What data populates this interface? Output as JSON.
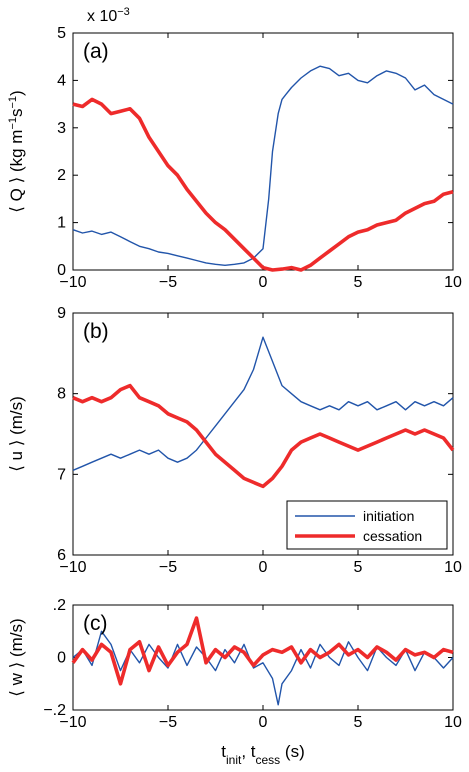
{
  "figure": {
    "xlabel_main": "t",
    "xlabel_sub1": "init",
    "xlabel_sep": ", t",
    "xlabel_sub2": "cess",
    "xlabel_unit": " (s)"
  },
  "colors": {
    "initiation": "#2255aa",
    "cessation": "#ee2b2b"
  },
  "chart_data": [
    {
      "type": "line",
      "panel_label": "(a)",
      "multiplier_base": "x 10",
      "multiplier_exp": "−3",
      "ylabel_parts": [
        "⟨ Q ⟩ (kg m",
        "−1",
        "s",
        "−1",
        ")"
      ],
      "xlim": [
        -10,
        10
      ],
      "ylim": [
        0,
        5
      ],
      "xticks": [
        "−10",
        "−5",
        "0",
        "5",
        "10"
      ],
      "yticks": [
        "0",
        "1",
        "2",
        "3",
        "4",
        "5"
      ],
      "series": [
        {
          "name": "initiation",
          "x": [
            -10,
            -9.5,
            -9,
            -8.5,
            -8,
            -7.5,
            -7,
            -6.5,
            -6,
            -5.5,
            -5,
            -4.5,
            -4,
            -3.5,
            -3,
            -2.5,
            -2,
            -1.5,
            -1,
            -0.5,
            0,
            0.3,
            0.5,
            0.8,
            1,
            1.2,
            1.5,
            2,
            2.5,
            3,
            3.5,
            4,
            4.5,
            5,
            5.5,
            6,
            6.5,
            7,
            7.5,
            8,
            8.5,
            9,
            9.5,
            10
          ],
          "y": [
            0.85,
            0.78,
            0.82,
            0.75,
            0.8,
            0.7,
            0.6,
            0.5,
            0.45,
            0.38,
            0.35,
            0.3,
            0.25,
            0.2,
            0.15,
            0.12,
            0.1,
            0.12,
            0.15,
            0.25,
            0.45,
            1.5,
            2.5,
            3.3,
            3.6,
            3.7,
            3.85,
            4.05,
            4.2,
            4.3,
            4.25,
            4.1,
            4.15,
            4.0,
            3.95,
            4.1,
            4.2,
            4.15,
            4.05,
            3.8,
            3.9,
            3.7,
            3.6,
            3.5
          ]
        },
        {
          "name": "cessation",
          "x": [
            -10,
            -9.5,
            -9,
            -8.5,
            -8,
            -7.5,
            -7,
            -6.5,
            -6,
            -5.5,
            -5,
            -4.5,
            -4,
            -3.5,
            -3,
            -2.5,
            -2,
            -1.5,
            -1,
            -0.5,
            0,
            0.5,
            1,
            1.5,
            2,
            2.5,
            3,
            3.5,
            4,
            4.5,
            5,
            5.5,
            6,
            6.5,
            7,
            7.5,
            8,
            8.5,
            9,
            9.5,
            10
          ],
          "y": [
            3.5,
            3.45,
            3.6,
            3.5,
            3.3,
            3.35,
            3.4,
            3.2,
            2.8,
            2.5,
            2.2,
            2.0,
            1.7,
            1.45,
            1.2,
            1.0,
            0.85,
            0.65,
            0.45,
            0.25,
            0.05,
            0.0,
            0.02,
            0.05,
            0.0,
            0.1,
            0.25,
            0.4,
            0.55,
            0.7,
            0.8,
            0.85,
            0.95,
            1.0,
            1.05,
            1.2,
            1.3,
            1.4,
            1.45,
            1.6,
            1.65
          ]
        }
      ]
    },
    {
      "type": "line",
      "panel_label": "(b)",
      "ylabel": "⟨ u ⟩ (m/s)",
      "xlim": [
        -10,
        10
      ],
      "ylim": [
        6,
        9
      ],
      "xticks": [
        "−10",
        "−5",
        "0",
        "5",
        "10"
      ],
      "yticks": [
        "6",
        "7",
        "8",
        "9"
      ],
      "legend": {
        "position": "bottom-right",
        "entries": [
          "initiation",
          "cessation"
        ]
      },
      "series": [
        {
          "name": "initiation",
          "x": [
            -10,
            -9.5,
            -9,
            -8.5,
            -8,
            -7.5,
            -7,
            -6.5,
            -6,
            -5.5,
            -5,
            -4.5,
            -4,
            -3.5,
            -3,
            -2.5,
            -2,
            -1.5,
            -1,
            -0.5,
            0,
            0.5,
            1,
            1.5,
            2,
            2.5,
            3,
            3.5,
            4,
            4.5,
            5,
            5.5,
            6,
            6.5,
            7,
            7.5,
            8,
            8.5,
            9,
            9.5,
            10
          ],
          "y": [
            7.05,
            7.1,
            7.15,
            7.2,
            7.25,
            7.2,
            7.25,
            7.3,
            7.25,
            7.3,
            7.2,
            7.15,
            7.2,
            7.3,
            7.45,
            7.6,
            7.75,
            7.9,
            8.05,
            8.3,
            8.7,
            8.4,
            8.1,
            8.0,
            7.9,
            7.85,
            7.8,
            7.85,
            7.8,
            7.9,
            7.85,
            7.9,
            7.8,
            7.85,
            7.9,
            7.8,
            7.9,
            7.85,
            7.9,
            7.85,
            7.95
          ]
        },
        {
          "name": "cessation",
          "x": [
            -10,
            -9.5,
            -9,
            -8.5,
            -8,
            -7.5,
            -7,
            -6.5,
            -6,
            -5.5,
            -5,
            -4.5,
            -4,
            -3.5,
            -3,
            -2.5,
            -2,
            -1.5,
            -1,
            -0.5,
            0,
            0.5,
            1,
            1.5,
            2,
            2.5,
            3,
            3.5,
            4,
            4.5,
            5,
            5.5,
            6,
            6.5,
            7,
            7.5,
            8,
            8.5,
            9,
            9.5,
            10
          ],
          "y": [
            7.95,
            7.9,
            7.95,
            7.9,
            7.95,
            8.05,
            8.1,
            7.95,
            7.9,
            7.85,
            7.75,
            7.7,
            7.65,
            7.55,
            7.4,
            7.25,
            7.15,
            7.05,
            6.95,
            6.9,
            6.85,
            6.95,
            7.1,
            7.3,
            7.4,
            7.45,
            7.5,
            7.45,
            7.4,
            7.35,
            7.3,
            7.35,
            7.4,
            7.45,
            7.5,
            7.55,
            7.5,
            7.55,
            7.5,
            7.45,
            7.3
          ]
        }
      ]
    },
    {
      "type": "line",
      "panel_label": "(c)",
      "ylabel": "⟨ w ⟩ (m/s)",
      "xlim": [
        -10,
        10
      ],
      "ylim": [
        -0.2,
        0.2
      ],
      "xticks": [
        "−10",
        "−5",
        "0",
        "5",
        "10"
      ],
      "yticks": [
        "−.2",
        "0",
        ".2"
      ],
      "series": [
        {
          "name": "initiation",
          "x": [
            -10,
            -9.5,
            -9,
            -8.5,
            -8,
            -7.5,
            -7,
            -6.5,
            -6,
            -5.5,
            -5,
            -4.5,
            -4,
            -3.5,
            -3,
            -2.5,
            -2,
            -1.5,
            -1,
            -0.5,
            0,
            0.5,
            0.8,
            1,
            1.5,
            2,
            2.5,
            3,
            3.5,
            4,
            4.5,
            5,
            5.5,
            6,
            6.5,
            7,
            7.5,
            8,
            8.5,
            9,
            9.5,
            10
          ],
          "y": [
            0.0,
            0.03,
            -0.03,
            0.1,
            0.05,
            -0.05,
            0.03,
            -0.02,
            0.05,
            0.0,
            -0.04,
            0.05,
            -0.03,
            0.04,
            0.0,
            -0.05,
            0.03,
            -0.02,
            0.05,
            -0.04,
            -0.02,
            -0.08,
            -0.18,
            -0.1,
            -0.05,
            0.03,
            -0.04,
            0.05,
            0.0,
            -0.03,
            0.06,
            0.0,
            -0.05,
            0.04,
            0.0,
            -0.03,
            0.03,
            -0.05,
            0.02,
            0.0,
            -0.04,
            0.0
          ]
        },
        {
          "name": "cessation",
          "x": [
            -10,
            -9.5,
            -9,
            -8.5,
            -8,
            -7.5,
            -7,
            -6.5,
            -6,
            -5.5,
            -5,
            -4.5,
            -4,
            -3.5,
            -3,
            -2.5,
            -2,
            -1.5,
            -1,
            -0.5,
            0,
            0.5,
            1,
            1.5,
            2,
            2.5,
            3,
            3.5,
            4,
            4.5,
            5,
            5.5,
            6,
            6.5,
            7,
            7.5,
            8,
            8.5,
            9,
            9.5,
            10
          ],
          "y": [
            -0.02,
            0.03,
            -0.01,
            0.05,
            0.02,
            -0.1,
            0.03,
            0.06,
            -0.05,
            0.04,
            -0.03,
            0.02,
            0.05,
            0.15,
            -0.02,
            0.03,
            0.0,
            0.04,
            0.02,
            -0.03,
            0.01,
            0.03,
            0.02,
            0.04,
            -0.02,
            0.03,
            0.0,
            0.02,
            0.05,
            0.01,
            0.03,
            0.0,
            0.04,
            0.02,
            -0.01,
            0.03,
            0.01,
            0.02,
            0.0,
            0.03,
            0.02
          ]
        }
      ]
    }
  ]
}
